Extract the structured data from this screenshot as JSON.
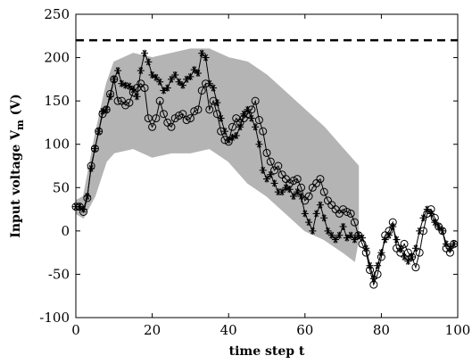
{
  "chart_data": {
    "type": "line",
    "title": "",
    "xlabel": "time step t",
    "ylabel_main": "Input voltage V",
    "ylabel_sub": "m",
    "ylabel_unit": " (V)",
    "xlim": [
      0,
      100
    ],
    "ylim": [
      -100,
      250
    ],
    "xticks": [
      0,
      20,
      40,
      60,
      80,
      100
    ],
    "yticks": [
      -100,
      -50,
      0,
      50,
      100,
      150,
      200,
      250
    ],
    "grid": false,
    "legend": "none",
    "reference_line": {
      "y": 220,
      "style": "dashed",
      "color": "#000000"
    },
    "band": {
      "description_color": "#b4b4b4",
      "x": [
        0,
        2,
        5,
        8,
        10,
        15,
        20,
        25,
        30,
        35,
        40,
        45,
        50,
        55,
        60,
        65,
        70,
        73,
        74
      ],
      "upper": [
        35,
        40,
        110,
        170,
        195,
        205,
        200,
        205,
        210,
        210,
        200,
        195,
        180,
        160,
        140,
        120,
        95,
        80,
        75
      ],
      "lower": [
        20,
        15,
        40,
        80,
        90,
        95,
        85,
        90,
        90,
        95,
        80,
        55,
        40,
        20,
        0,
        -10,
        -25,
        -35,
        -10
      ]
    },
    "series": [
      {
        "marker": "asterisk",
        "color": "#000000",
        "x": [
          0,
          1,
          2,
          3,
          4,
          5,
          6,
          7,
          8,
          9,
          10,
          11,
          12,
          13,
          14,
          15,
          16,
          17,
          18,
          19,
          20,
          21,
          22,
          23,
          24,
          25,
          26,
          27,
          28,
          29,
          30,
          31,
          32,
          33,
          34,
          35,
          36,
          37,
          38,
          39,
          40,
          41,
          42,
          43,
          44,
          45,
          46,
          47,
          48,
          49,
          50,
          51,
          52,
          53,
          54,
          55,
          56,
          57,
          58,
          59,
          60,
          61,
          62,
          63,
          64,
          65,
          66,
          67,
          68,
          69,
          70,
          71,
          72,
          73,
          74,
          75,
          76,
          77,
          78,
          79,
          80,
          81,
          82,
          83,
          84,
          85,
          86,
          87,
          88,
          89,
          90,
          91,
          92,
          93,
          94,
          95,
          96,
          97,
          98,
          99
        ],
        "y": [
          28,
          28,
          25,
          40,
          72,
          95,
          115,
          138,
          140,
          155,
          175,
          185,
          170,
          168,
          167,
          163,
          155,
          185,
          205,
          195,
          180,
          177,
          172,
          162,
          165,
          175,
          180,
          172,
          168,
          175,
          178,
          186,
          182,
          205,
          200,
          170,
          165,
          148,
          130,
          115,
          105,
          108,
          110,
          120,
          135,
          140,
          130,
          120,
          100,
          70,
          60,
          65,
          55,
          45,
          45,
          50,
          48,
          40,
          45,
          40,
          20,
          10,
          0,
          20,
          30,
          15,
          0,
          -5,
          -10,
          -5,
          5,
          -8,
          -5,
          -10,
          -5,
          -8,
          -20,
          -40,
          -55,
          -40,
          -25,
          -10,
          -5,
          5,
          -10,
          -20,
          -30,
          -35,
          -30,
          -20,
          0,
          15,
          25,
          20,
          10,
          5,
          0,
          -15,
          -20,
          -15
        ]
      },
      {
        "marker": "circle",
        "color": "#000000",
        "x": [
          0,
          1,
          2,
          3,
          4,
          5,
          6,
          7,
          8,
          9,
          10,
          11,
          12,
          13,
          14,
          15,
          16,
          17,
          18,
          19,
          20,
          21,
          22,
          23,
          24,
          25,
          26,
          27,
          28,
          29,
          30,
          31,
          32,
          33,
          34,
          35,
          36,
          37,
          38,
          39,
          40,
          41,
          42,
          43,
          44,
          45,
          46,
          47,
          48,
          49,
          50,
          51,
          52,
          53,
          54,
          55,
          56,
          57,
          58,
          59,
          60,
          61,
          62,
          63,
          64,
          65,
          66,
          67,
          68,
          69,
          70,
          71,
          72,
          73,
          74,
          75,
          76,
          77,
          78,
          79,
          80,
          81,
          82,
          83,
          84,
          85,
          86,
          87,
          88,
          89,
          90,
          91,
          92,
          93,
          94,
          95,
          96,
          97,
          98,
          99
        ],
        "y": [
          28,
          28,
          22,
          38,
          75,
          95,
          115,
          135,
          140,
          158,
          175,
          150,
          150,
          145,
          148,
          160,
          165,
          170,
          165,
          130,
          120,
          130,
          150,
          135,
          125,
          120,
          130,
          133,
          135,
          128,
          130,
          138,
          140,
          162,
          170,
          140,
          150,
          135,
          115,
          105,
          103,
          120,
          130,
          125,
          130,
          135,
          140,
          150,
          128,
          115,
          90,
          80,
          70,
          75,
          65,
          60,
          55,
          58,
          60,
          50,
          35,
          40,
          50,
          55,
          60,
          45,
          35,
          30,
          25,
          20,
          25,
          22,
          20,
          10,
          -5,
          -15,
          -25,
          -45,
          -62,
          -50,
          -30,
          -5,
          0,
          10,
          -20,
          -25,
          -15,
          -25,
          -30,
          -42,
          -25,
          0,
          20,
          25,
          15,
          5,
          0,
          -20,
          -25,
          -15
        ]
      }
    ]
  }
}
